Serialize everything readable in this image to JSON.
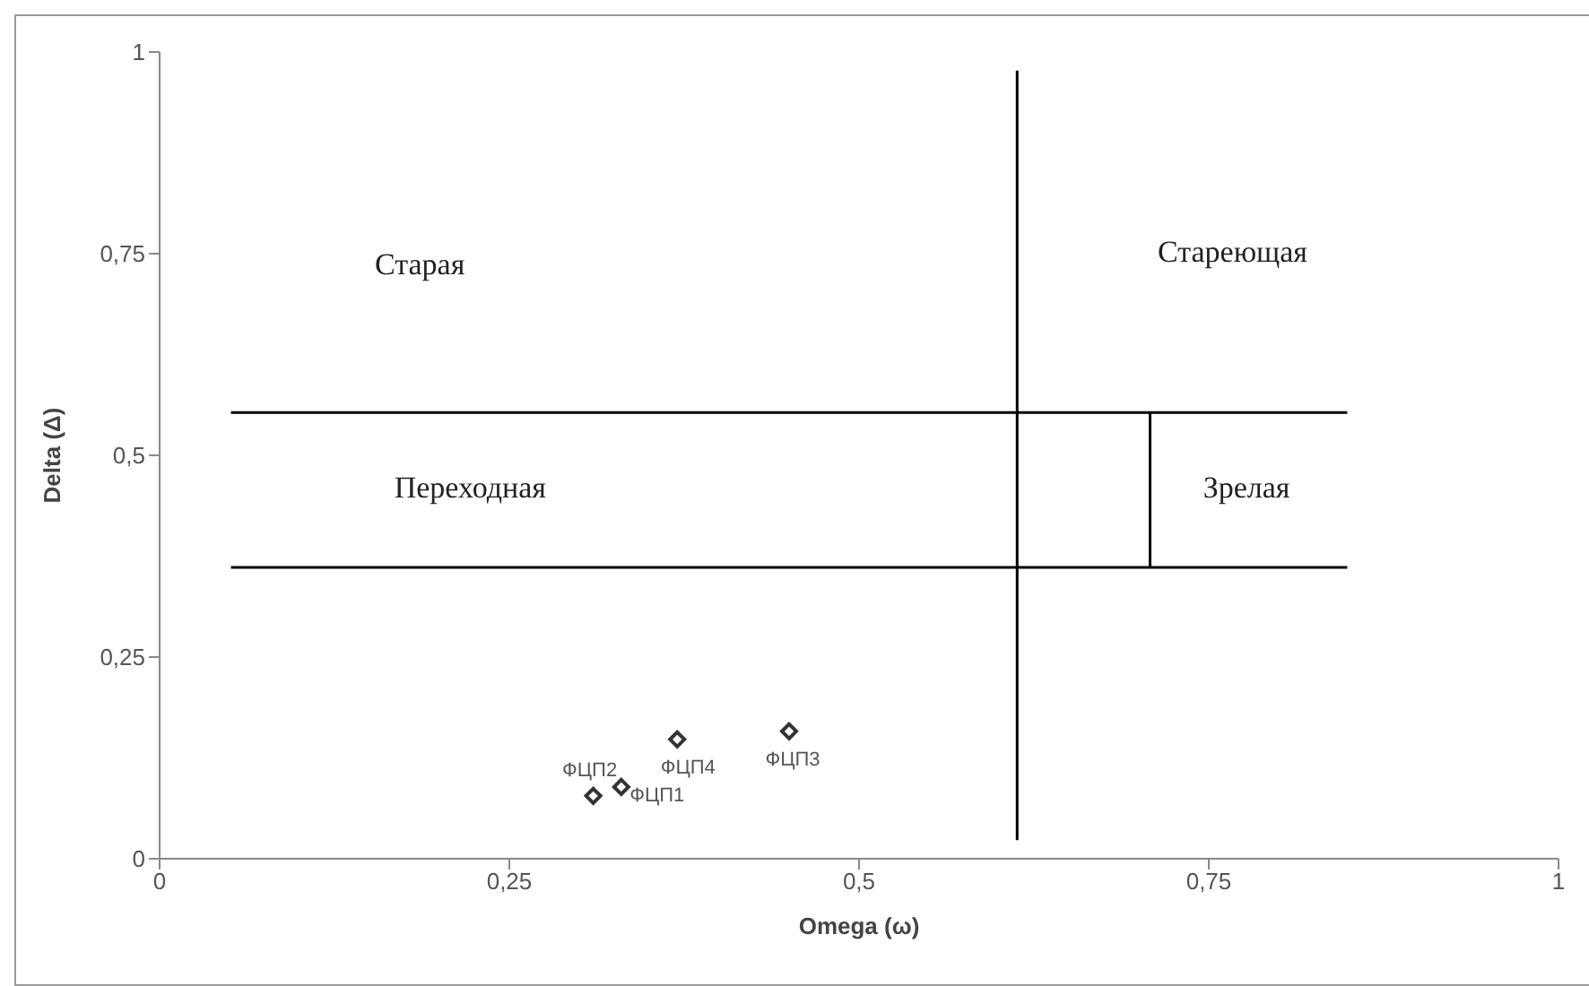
{
  "chart_data": {
    "type": "scatter",
    "xlabel": "Omega (ω)",
    "ylabel": "Delta (Δ)",
    "xlim": [
      0,
      1
    ],
    "ylim": [
      0,
      1
    ],
    "xticks": [
      0,
      {
        "value": 0.25,
        "label": "0,25"
      },
      {
        "value": 0.5,
        "label": "0,5"
      },
      {
        "value": 0.75,
        "label": "0,75"
      },
      1
    ],
    "yticks": [
      0,
      {
        "value": 0.25,
        "label": "0,25"
      },
      {
        "value": 0.5,
        "label": "0,5"
      },
      {
        "value": 0.75,
        "label": "0,75"
      },
      1
    ],
    "grid": false,
    "legend": false,
    "series": [
      {
        "color": "#333333",
        "marker": "diamond",
        "x": [
          0.31,
          0.33,
          0.37,
          0.45
        ],
        "values": [
          0.078,
          0.089,
          0.148,
          0.158
        ]
      },
      {
        "type": "line",
        "color": "#000000",
        "x": [
          0.613,
          0.613
        ],
        "values": [
          0.023,
          0.977
        ]
      },
      {
        "type": "line",
        "color": "#000000",
        "x": [
          0.051,
          0.849
        ],
        "values": [
          0.553,
          0.553
        ]
      },
      {
        "type": "line",
        "color": "#000000",
        "x": [
          0.051,
          0.849
        ],
        "values": [
          0.361,
          0.361
        ]
      },
      {
        "type": "line",
        "color": "#000000",
        "x": [
          0.708,
          0.708
        ],
        "values": [
          0.361,
          0.553
        ]
      }
    ],
    "annotations": [
      "Старая",
      "Стареющая",
      "Переходная",
      "Зрелая",
      {
        "text": "ФЦП2",
        "x": 0.31,
        "y": 0.078
      },
      {
        "text": "ФЦП1",
        "x": 0.33,
        "y": 0.089
      },
      {
        "text": "ФЦП4",
        "x": 0.37,
        "y": 0.148
      },
      {
        "text": "ФЦП3",
        "x": 0.45,
        "y": 0.158
      }
    ]
  }
}
